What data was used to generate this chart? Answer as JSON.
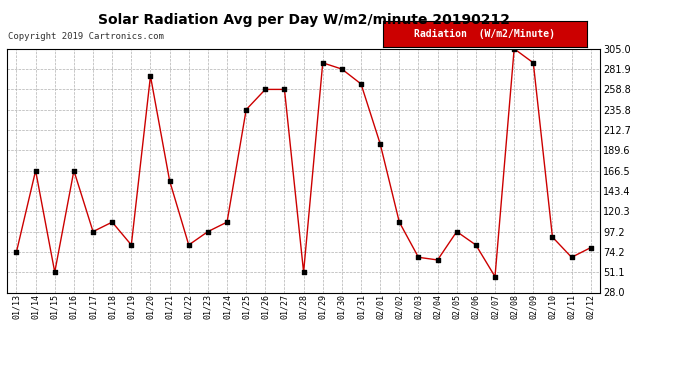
{
  "title": "Solar Radiation Avg per Day W/m2/minute 20190212",
  "copyright": "Copyright 2019 Cartronics.com",
  "legend_label": "Radiation  (W/m2/Minute)",
  "dates": [
    "01/13",
    "01/14",
    "01/15",
    "01/16",
    "01/17",
    "01/18",
    "01/19",
    "01/20",
    "01/21",
    "01/22",
    "01/23",
    "01/24",
    "01/25",
    "01/26",
    "01/27",
    "01/28",
    "01/29",
    "01/30",
    "01/31",
    "02/01",
    "02/02",
    "02/03",
    "02/04",
    "02/05",
    "02/06",
    "02/07",
    "02/08",
    "02/09",
    "02/10",
    "02/11",
    "02/12"
  ],
  "values": [
    74.2,
    166.5,
    51.1,
    166.5,
    97.2,
    108.0,
    82.0,
    274.0,
    155.0,
    82.0,
    97.2,
    108.0,
    235.8,
    258.8,
    258.8,
    51.1,
    289.0,
    281.9,
    265.0,
    197.0,
    108.0,
    68.0,
    65.0,
    97.2,
    82.0,
    46.0,
    305.0,
    289.0,
    91.0,
    68.0,
    79.0
  ],
  "line_color": "#cc0000",
  "marker_color": "#000000",
  "bg_color": "#ffffff",
  "grid_color": "#b0b0b0",
  "ylim": [
    28.0,
    305.0
  ],
  "yticks": [
    28.0,
    51.1,
    74.2,
    97.2,
    120.3,
    143.4,
    166.5,
    189.6,
    212.7,
    235.8,
    258.8,
    281.9,
    305.0
  ],
  "title_fontsize": 10,
  "copyright_fontsize": 6.5,
  "legend_fontsize": 7,
  "xtick_fontsize": 6,
  "ytick_fontsize": 7
}
